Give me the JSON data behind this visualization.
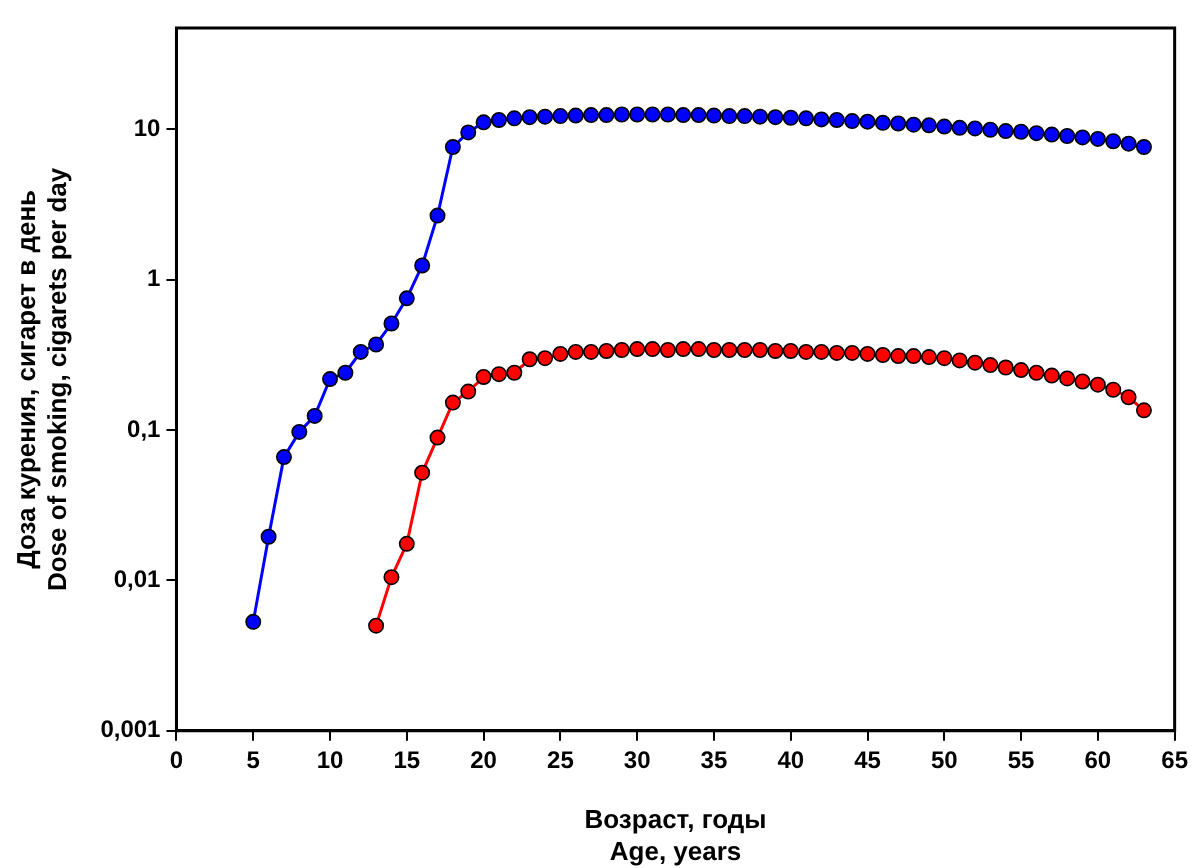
{
  "chart_data": {
    "type": "line",
    "xlabel": "Возраст, годы\nAge, years",
    "ylabel": "Доза курения, сигарет в день\nDose of smoking, cigarets per day",
    "log": "y",
    "grid": false,
    "marker": "circle",
    "line_style": "solid",
    "xlim": [
      0,
      65
    ],
    "xticks": [
      0,
      5,
      10,
      15,
      20,
      25,
      30,
      35,
      40,
      45,
      50,
      55,
      60,
      65
    ],
    "ylim": [
      0.001,
      47
    ],
    "yticks": [
      {
        "value": 0.001,
        "label": "0,001"
      },
      {
        "value": 0.01,
        "label": "0,01"
      },
      {
        "value": 0.1,
        "label": "0,1"
      },
      1,
      10
    ],
    "series": [
      {
        "color": "#0000ff",
        "x": [
          5,
          6,
          7,
          8,
          9,
          10,
          11,
          12,
          13,
          14,
          15,
          16,
          17,
          18,
          19,
          20,
          21,
          22,
          23,
          24,
          25,
          26,
          27,
          28,
          29,
          30,
          31,
          32,
          33,
          34,
          35,
          36,
          37,
          38,
          39,
          40,
          41,
          42,
          43,
          44,
          45,
          46,
          47,
          48,
          49,
          50,
          51,
          52,
          53,
          54,
          55,
          56,
          57,
          58,
          59,
          60,
          61,
          62,
          63
        ],
        "values": [
          0.0053,
          0.0195,
          0.066,
          0.097,
          0.124,
          0.218,
          0.24,
          0.33,
          0.37,
          0.51,
          0.75,
          1.24,
          2.66,
          7.6,
          9.5,
          11.1,
          11.5,
          11.8,
          12,
          12.1,
          12.2,
          12.3,
          12.4,
          12.4,
          12.5,
          12.5,
          12.5,
          12.5,
          12.4,
          12.4,
          12.3,
          12.2,
          12.2,
          12.1,
          12,
          11.9,
          11.8,
          11.6,
          11.5,
          11.3,
          11.2,
          11,
          10.9,
          10.7,
          10.6,
          10.4,
          10.2,
          10.1,
          9.9,
          9.7,
          9.6,
          9.4,
          9.2,
          9.0,
          8.8,
          8.6,
          8.3,
          8.0,
          7.6
        ]
      },
      {
        "color": "#ff0000",
        "x": [
          13,
          14,
          15,
          16,
          17,
          18,
          19,
          20,
          21,
          22,
          23,
          24,
          25,
          26,
          27,
          28,
          29,
          30,
          31,
          32,
          33,
          34,
          35,
          36,
          37,
          38,
          39,
          40,
          41,
          42,
          43,
          44,
          45,
          46,
          47,
          48,
          49,
          50,
          51,
          52,
          53,
          54,
          55,
          56,
          57,
          58,
          59,
          60,
          61,
          62,
          63
        ],
        "values": [
          0.005,
          0.0105,
          0.0175,
          0.052,
          0.089,
          0.152,
          0.18,
          0.225,
          0.235,
          0.24,
          0.295,
          0.3,
          0.32,
          0.33,
          0.33,
          0.335,
          0.34,
          0.345,
          0.345,
          0.34,
          0.345,
          0.345,
          0.34,
          0.34,
          0.34,
          0.34,
          0.335,
          0.335,
          0.33,
          0.33,
          0.325,
          0.325,
          0.32,
          0.315,
          0.31,
          0.31,
          0.305,
          0.3,
          0.29,
          0.28,
          0.27,
          0.26,
          0.25,
          0.24,
          0.23,
          0.22,
          0.21,
          0.2,
          0.185,
          0.165,
          0.135
        ]
      }
    ]
  }
}
